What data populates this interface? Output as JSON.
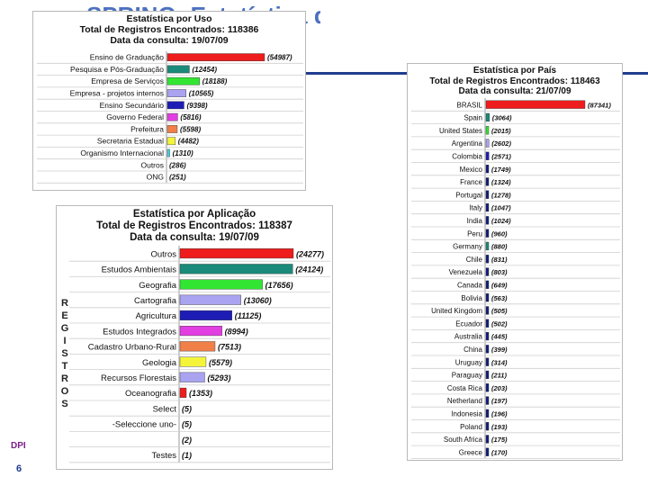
{
  "slide": {
    "title": "SPRING: Estatística de uso",
    "page_number": "6",
    "logo_text": "DPI"
  },
  "side_letters": [
    "R",
    "E",
    "G",
    "I",
    "S",
    "T",
    "R",
    "O",
    "S"
  ],
  "colors": {
    "red": "#ee1c1c",
    "teal": "#1a8a7a",
    "green": "#33e533",
    "lavender": "#a9a3f0",
    "blue": "#1d1db5",
    "magenta": "#e23ee2",
    "orange": "#f08048",
    "yellow": "#f4f43a",
    "cyan": "#45d3f0",
    "darkblue": "#0f1f7d",
    "gray": "#8c8c8c"
  },
  "chart_data": [
    {
      "type": "bar",
      "orientation": "horizontal",
      "title": "Estatística por Uso",
      "subtitle": "Total de Registros Encontrados: 118386",
      "date_line": "Data da consulta: 19/07/09",
      "categories": [
        "Ensino de Graduação",
        "Pesquisa e Pós-Graduação",
        "Empresa de Serviços",
        "Empresa - projetos internos",
        "Ensino Secundário",
        "Governo Federal",
        "Prefeitura",
        "Secretaria Estadual",
        "Organismo Internacional",
        "Outros",
        "ONG"
      ],
      "values": [
        54987,
        12454,
        18188,
        10565,
        9398,
        5816,
        5598,
        4482,
        1310,
        286,
        251
      ],
      "labels": [
        "(54987)",
        "(12454)",
        "(18188)",
        "(10565)",
        "(9398)",
        "(5816)",
        "(5598)",
        "(4482)",
        "(1310)",
        "(286)",
        "(251)"
      ],
      "bar_colors": [
        "red",
        "teal",
        "green",
        "lavender",
        "blue",
        "magenta",
        "orange",
        "yellow",
        "cyan",
        "darkblue",
        "gray"
      ]
    },
    {
      "type": "bar",
      "orientation": "horizontal",
      "title": "Estatística por País",
      "subtitle": "Total de Registros Encontrados: 118463",
      "date_line": "Data da consulta: 21/07/09",
      "categories": [
        "BRASIL",
        "Spain",
        "United States",
        "Argentina",
        "Colombia",
        "Mexico",
        "France",
        "Portugal",
        "Italy",
        "India",
        "Peru",
        "Germany",
        "Chile",
        "Venezuela",
        "Canada",
        "Bolivia",
        "United Kingdom",
        "Ecuador",
        "Australia",
        "China",
        "Uruguay",
        "Paraguay",
        "Costa Rica",
        "Netherland",
        "Indonesia",
        "Poland",
        "South Africa",
        "Greece"
      ],
      "values": [
        87341,
        3064,
        2015,
        2602,
        2571,
        1749,
        1324,
        1278,
        1047,
        1024,
        960,
        880,
        831,
        803,
        649,
        563,
        505,
        502,
        445,
        399,
        314,
        211,
        203,
        197,
        196,
        193,
        175,
        170
      ],
      "labels": [
        "(87341)",
        "(3064)",
        "(2015)",
        "(2602)",
        "(2571)",
        "(1749)",
        "(1324)",
        "(1278)",
        "(1047)",
        "(1024)",
        "(960)",
        "(880)",
        "(831)",
        "(803)",
        "(649)",
        "(563)",
        "(505)",
        "(502)",
        "(445)",
        "(399)",
        "(314)",
        "(211)",
        "(203)",
        "(197)",
        "(196)",
        "(193)",
        "(175)",
        "(170)"
      ],
      "bar_colors": [
        "red",
        "teal",
        "green",
        "lavender",
        "blue",
        "darkblue",
        "darkblue",
        "darkblue",
        "darkblue",
        "darkblue",
        "darkblue",
        "teal",
        "darkblue",
        "darkblue",
        "darkblue",
        "darkblue",
        "darkblue",
        "darkblue",
        "darkblue",
        "darkblue",
        "darkblue",
        "darkblue",
        "darkblue",
        "darkblue",
        "darkblue",
        "darkblue",
        "darkblue",
        "darkblue"
      ]
    },
    {
      "type": "bar",
      "orientation": "horizontal",
      "title": "Estatística por Aplicação",
      "subtitle": "Total de Registros Encontrados: 118387",
      "date_line": "Data da consulta: 19/07/09",
      "categories": [
        "Outros",
        "Estudos Ambientais",
        "Geografia",
        "Cartografia",
        "Agricultura",
        "Estudos Integrados",
        "Cadastro Urbano-Rural",
        "Geologia",
        "Recursos Florestais",
        "Oceanografia",
        "Select",
        "-Seleccione uno-",
        "",
        "Testes"
      ],
      "values": [
        24277,
        24124,
        17656,
        13060,
        11125,
        8994,
        7513,
        5579,
        5293,
        1353,
        5,
        5,
        2,
        1
      ],
      "labels": [
        "(24277)",
        "(24124)",
        "(17656)",
        "(13060)",
        "(11125)",
        "(8994)",
        "(7513)",
        "(5579)",
        "(5293)",
        "(1353)",
        "(5)",
        "(5)",
        "(2)",
        "(1)"
      ],
      "bar_colors": [
        "red",
        "teal",
        "green",
        "lavender",
        "blue",
        "magenta",
        "orange",
        "yellow",
        "lavender",
        "red",
        "gray",
        "gray",
        "gray",
        "gray"
      ]
    }
  ]
}
